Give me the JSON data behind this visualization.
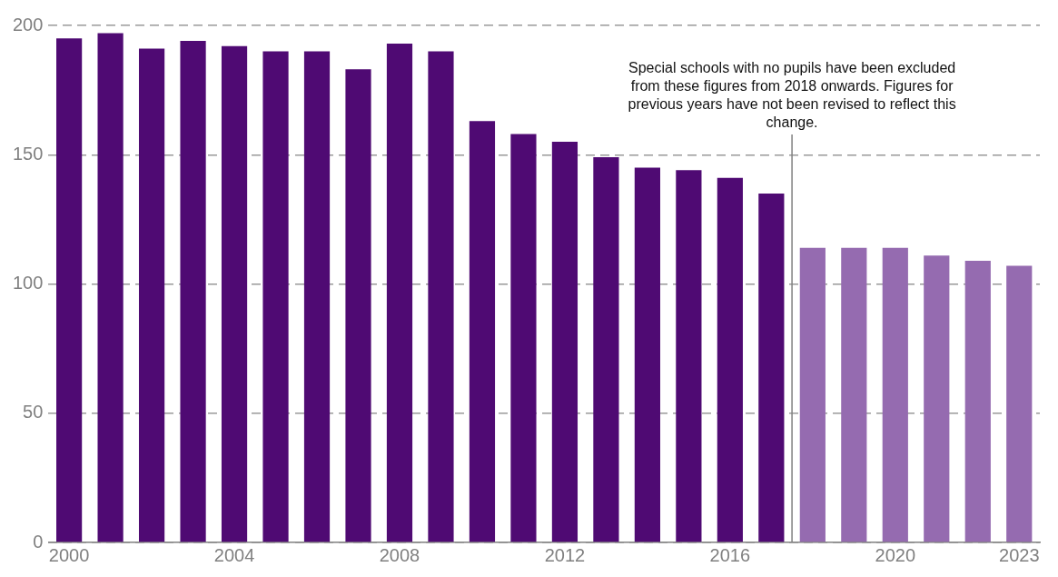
{
  "chart_data": {
    "type": "bar",
    "series": [
      {
        "color": "#4f0a73",
        "x": [
          2000,
          2001,
          2002,
          2003,
          2004,
          2005,
          2006,
          2007,
          2008,
          2009,
          2010,
          2011,
          2012,
          2013,
          2014,
          2015,
          2016,
          2017
        ],
        "values": [
          195,
          197,
          191,
          194,
          192,
          190,
          190,
          183,
          193,
          190,
          163,
          158,
          155,
          149,
          145,
          144,
          141,
          135
        ]
      },
      {
        "color": "#956bb0",
        "x": [
          2018,
          2019,
          2020,
          2021,
          2022,
          2023
        ],
        "values": [
          114,
          114,
          114,
          111,
          109,
          107
        ]
      }
    ],
    "xlim": [
      1999.5,
      2023.5
    ],
    "xticks": [
      2000,
      2004,
      2008,
      2012,
      2016,
      2020,
      2023
    ],
    "ylim": [
      0,
      200
    ],
    "yticks": [
      0,
      50,
      100,
      150,
      200
    ],
    "grid": "y",
    "legend": false,
    "ref_lines": [
      {
        "axis": "x",
        "value": 2017.5,
        "label": "Special schools with no pupils have been excluded from these figures from 2018 onwards. Figures for previous years have not been revised to reflect this change.",
        "color": "#808080"
      }
    ]
  }
}
